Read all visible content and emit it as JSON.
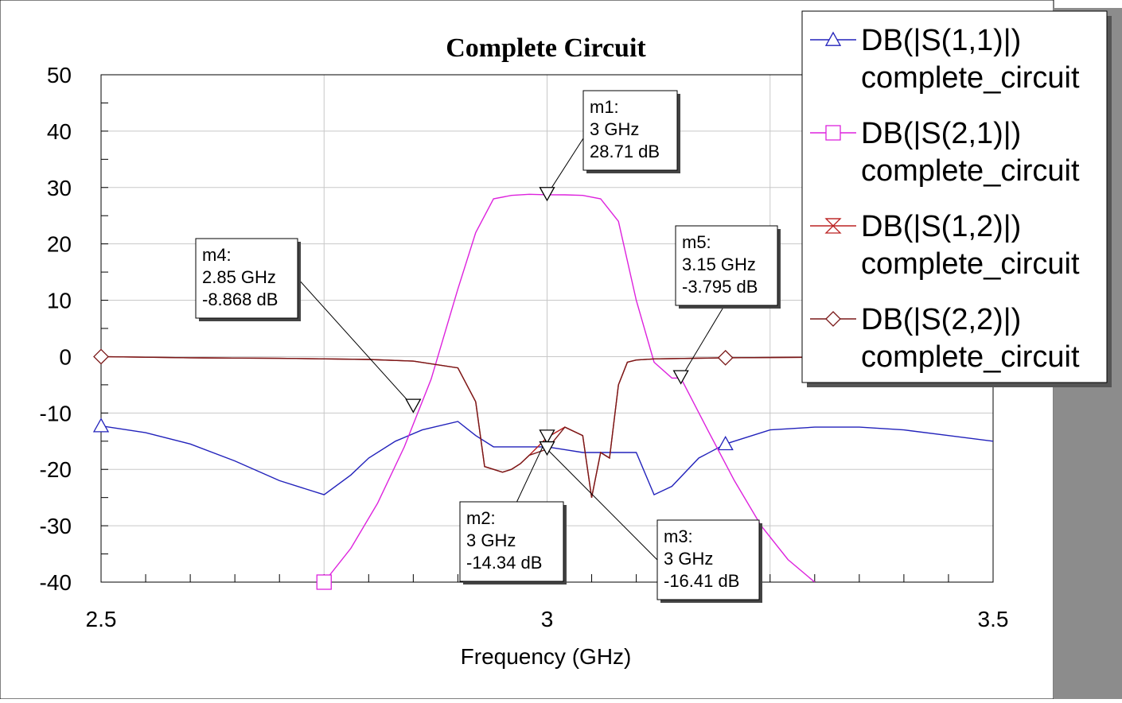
{
  "chart_data": {
    "type": "line",
    "title": "Complete Circuit",
    "xlabel": "Frequency (GHz)",
    "ylabel": "",
    "xlim": [
      2.5,
      3.5
    ],
    "ylim": [
      -40,
      50
    ],
    "xticks": [
      2.5,
      3,
      3.5
    ],
    "xtick_labels": [
      "2.5",
      "3",
      "3.5"
    ],
    "yticks": [
      50,
      40,
      30,
      20,
      10,
      0,
      -10,
      -20,
      -30,
      -40
    ],
    "ytick_labels": [
      "50",
      "40",
      "30",
      "20",
      "10",
      "0",
      "-10",
      "-20",
      "-30",
      "-40"
    ],
    "grid": true,
    "legend_position": "top-right",
    "series": [
      {
        "name": "DB(|S(1,1)|)",
        "name2": "complete_circuit",
        "color": "#2222bb",
        "marker": "triangle-up",
        "marker_x": [
          2.5,
          3.2
        ],
        "x": [
          2.5,
          2.55,
          2.6,
          2.65,
          2.7,
          2.75,
          2.78,
          2.8,
          2.83,
          2.86,
          2.9,
          2.92,
          2.94,
          2.96,
          2.98,
          3.0,
          3.02,
          3.04,
          3.06,
          3.08,
          3.1,
          3.12,
          3.14,
          3.17,
          3.2,
          3.25,
          3.3,
          3.35,
          3.4,
          3.45,
          3.5
        ],
        "y": [
          -12.3,
          -13.5,
          -15.5,
          -18.5,
          -22,
          -24.5,
          -21,
          -18,
          -15,
          -13,
          -11.5,
          -14,
          -16,
          -16,
          -16,
          -16,
          -16.5,
          -17,
          -17,
          -17,
          -17,
          -24.5,
          -23,
          -18,
          -15.5,
          -13,
          -12.5,
          -12.5,
          -13,
          -14,
          -15
        ]
      },
      {
        "name": "DB(|S(2,1)|)",
        "name2": "complete_circuit",
        "color": "#dd22dd",
        "marker": "square",
        "marker_x": [
          2.75
        ],
        "x": [
          2.75,
          2.78,
          2.81,
          2.84,
          2.87,
          2.9,
          2.92,
          2.94,
          2.96,
          2.98,
          3.0,
          3.02,
          3.04,
          3.06,
          3.08,
          3.1,
          3.12,
          3.14,
          3.15,
          3.18,
          3.21,
          3.24,
          3.27,
          3.3
        ],
        "y": [
          -40,
          -34,
          -26,
          -16,
          -4,
          12,
          22,
          28,
          28.6,
          28.8,
          28.71,
          28.7,
          28.6,
          28,
          24,
          10,
          -1,
          -3.8,
          -3.795,
          -13,
          -22,
          -30,
          -36,
          -40
        ]
      },
      {
        "name": "DB(|S(1,2)|)",
        "name2": "complete_circuit",
        "color": "#bb2222",
        "marker": "hourglass",
        "marker_x": [],
        "x": [
          2.5,
          2.6,
          2.7,
          2.8,
          2.85,
          2.9,
          2.92,
          2.93,
          2.94,
          2.95,
          2.96,
          2.97,
          2.98,
          3.0,
          3.02,
          3.04,
          3.05,
          3.06,
          3.07,
          3.08,
          3.09,
          3.1,
          3.12,
          3.2,
          3.3,
          3.4,
          3.5
        ],
        "y": [
          0,
          -0.2,
          -0.3,
          -0.5,
          -0.8,
          -2,
          -8,
          -19.5,
          -20,
          -20.5,
          -20,
          -19,
          -17.5,
          -14.34,
          -12.5,
          -14,
          -25,
          -17,
          -18,
          -5,
          -1,
          -0.6,
          -0.4,
          -0.2,
          -0.1,
          0,
          0
        ]
      },
      {
        "name": "DB(|S(2,2)|)",
        "name2": "complete_circuit",
        "color": "#7a1818",
        "marker": "diamond",
        "marker_x": [
          2.5,
          3.2
        ],
        "x": [
          2.5,
          2.6,
          2.7,
          2.8,
          2.85,
          2.9,
          2.92,
          2.93,
          2.94,
          2.95,
          2.96,
          2.97,
          2.98,
          3.0,
          3.02,
          3.04,
          3.05,
          3.06,
          3.07,
          3.08,
          3.09,
          3.1,
          3.12,
          3.2,
          3.3,
          3.4,
          3.5
        ],
        "y": [
          0,
          -0.2,
          -0.3,
          -0.5,
          -0.8,
          -2,
          -8,
          -19.5,
          -20,
          -20.5,
          -20,
          -19,
          -17.5,
          -16.41,
          -12.5,
          -14,
          -25,
          -17,
          -18,
          -5,
          -1,
          -0.6,
          -0.4,
          -0.2,
          -0.1,
          0,
          0
        ]
      }
    ],
    "markers": [
      {
        "id": "m1",
        "line1": "m1:",
        "line2": "3 GHz",
        "line3": "28.71 dB",
        "x": 3.0,
        "y": 28.71,
        "box": "top-center"
      },
      {
        "id": "m2",
        "line1": "m2:",
        "line2": "3 GHz",
        "line3": "-14.34 dB",
        "x": 3.0,
        "y": -14.34,
        "box": "below-left"
      },
      {
        "id": "m3",
        "line1": "m3:",
        "line2": "3 GHz",
        "line3": "-16.41 dB",
        "x": 3.0,
        "y": -16.41,
        "box": "below-right"
      },
      {
        "id": "m4",
        "line1": "m4:",
        "line2": "2.85 GHz",
        "line3": "-8.868 dB",
        "x": 2.85,
        "y": -8.868,
        "box": "upper-left"
      },
      {
        "id": "m5",
        "line1": "m5:",
        "line2": "3.15 GHz",
        "line3": "-3.795 dB",
        "x": 3.15,
        "y": -3.795,
        "box": "upper-right"
      }
    ]
  }
}
